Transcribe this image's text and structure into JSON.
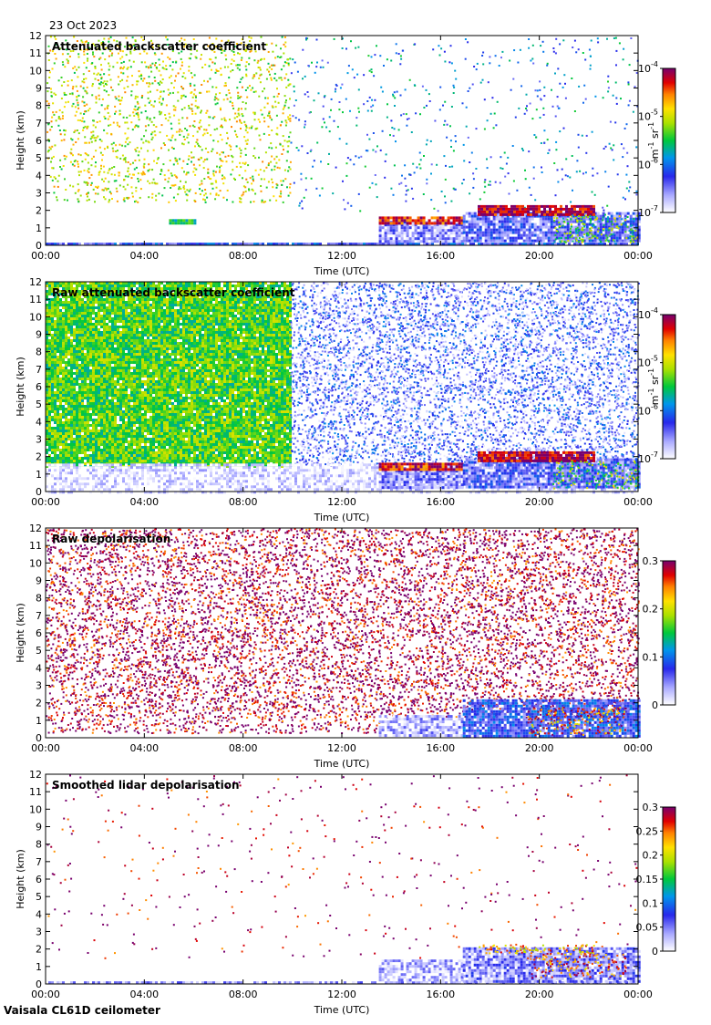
{
  "date_label": "23 Oct 2023",
  "footer": "Vaisala CL61D ceilometer",
  "chart_data": [
    {
      "type": "heatmap",
      "title": "Attenuated backscatter coefficient",
      "xlabel": "Time (UTC)",
      "ylabel": "Height (km)",
      "xticks": [
        "00:00",
        "04:00",
        "08:00",
        "12:00",
        "16:00",
        "20:00",
        "00:00"
      ],
      "xlim": [
        0,
        24
      ],
      "ylim": [
        0,
        12
      ],
      "yticks": [
        0,
        1,
        2,
        3,
        4,
        5,
        6,
        7,
        8,
        9,
        10,
        11,
        12
      ],
      "colorbar": {
        "scale": "log",
        "range": [
          1e-07,
          0.0001
        ],
        "ticks": [
          {
            "base": "10",
            "exp": "-4",
            "v": -4
          },
          {
            "base": "10",
            "exp": "-5",
            "v": -5
          },
          {
            "base": "10",
            "exp": "-6",
            "v": -6
          },
          {
            "base": "10",
            "exp": "-7",
            "v": -7
          }
        ],
        "unit": {
          "a": "m",
          "a_exp": "-1",
          "b": "sr",
          "b_exp": "-1"
        }
      },
      "features": [
        {
          "name": "noise-high",
          "t": [
            0,
            9.9
          ],
          "h": [
            2.5,
            12
          ],
          "level": 0.65,
          "density": 0.28
        },
        {
          "name": "noise-late",
          "t": [
            9.9,
            24
          ],
          "h": [
            2,
            12
          ],
          "level": 0.35,
          "density": 0.07
        },
        {
          "name": "surface-layer",
          "t": [
            0,
            24
          ],
          "h": [
            0,
            0.15
          ],
          "level": 0.25,
          "density": 0.9
        },
        {
          "name": "low-cloud-1",
          "t": [
            13.5,
            16.9
          ],
          "h": [
            0.2,
            1.4
          ],
          "level": 0.15,
          "density": 0.85
        },
        {
          "name": "cloud-top-1",
          "t": [
            13.5,
            16.9
          ],
          "h": [
            1.3,
            1.65
          ],
          "level": 0.9,
          "density": 0.9
        },
        {
          "name": "low-cloud-2",
          "t": [
            16.9,
            24
          ],
          "h": [
            0.2,
            1.9
          ],
          "level": 0.2,
          "density": 0.85
        },
        {
          "name": "cloud-top-2",
          "t": [
            17.5,
            22.2
          ],
          "h": [
            1.8,
            2.3
          ],
          "level": 0.95,
          "density": 0.95
        },
        {
          "name": "cloud-2-side",
          "t": [
            20.5,
            24
          ],
          "h": [
            0.2,
            1.8
          ],
          "level": 0.55,
          "density": 0.6
        },
        {
          "name": "aerosol-blob",
          "t": [
            5.0,
            6.0
          ],
          "h": [
            1.2,
            1.5
          ],
          "level": 0.5,
          "density": 0.9
        }
      ]
    },
    {
      "type": "heatmap",
      "title": "Raw attenuated backscatter coefficient",
      "xlabel": "Time (UTC)",
      "ylabel": "Height (km)",
      "xticks": [
        "00:00",
        "04:00",
        "08:00",
        "12:00",
        "16:00",
        "20:00",
        "00:00"
      ],
      "xlim": [
        0,
        24
      ],
      "ylim": [
        0,
        12
      ],
      "yticks": [
        0,
        1,
        2,
        3,
        4,
        5,
        6,
        7,
        8,
        9,
        10,
        11,
        12
      ],
      "colorbar": {
        "scale": "log",
        "range": [
          1e-07,
          0.0001
        ],
        "ticks": [
          {
            "base": "10",
            "exp": "-4",
            "v": -4
          },
          {
            "base": "10",
            "exp": "-5",
            "v": -5
          },
          {
            "base": "10",
            "exp": "-6",
            "v": -6
          },
          {
            "base": "10",
            "exp": "-7",
            "v": -7
          }
        ],
        "unit": {
          "a": "m",
          "a_exp": "-1",
          "b": "sr",
          "b_exp": "-1"
        }
      },
      "features": [
        {
          "name": "noise-day",
          "t": [
            0,
            9.9
          ],
          "h": [
            1.5,
            12
          ],
          "level": 0.55,
          "density": 0.95
        },
        {
          "name": "noise-night",
          "t": [
            9.9,
            24
          ],
          "h": [
            1.5,
            12
          ],
          "level": 0.2,
          "density": 0.75
        },
        {
          "name": "low-grey",
          "t": [
            0,
            24
          ],
          "h": [
            0,
            1.6
          ],
          "level": 0.02,
          "density": 0.9
        },
        {
          "name": "low-cloud-1",
          "t": [
            13.5,
            16.9
          ],
          "h": [
            0.2,
            1.4
          ],
          "level": 0.15,
          "density": 0.85
        },
        {
          "name": "cloud-top-1",
          "t": [
            13.5,
            16.9
          ],
          "h": [
            1.3,
            1.65
          ],
          "level": 0.9,
          "density": 0.9
        },
        {
          "name": "low-cloud-2",
          "t": [
            16.9,
            24
          ],
          "h": [
            0.2,
            1.9
          ],
          "level": 0.2,
          "density": 0.85
        },
        {
          "name": "cloud-top-2",
          "t": [
            17.5,
            22.2
          ],
          "h": [
            1.8,
            2.3
          ],
          "level": 0.95,
          "density": 0.95
        },
        {
          "name": "cloud-2-side",
          "t": [
            20.5,
            24
          ],
          "h": [
            0.2,
            1.8
          ],
          "level": 0.55,
          "density": 0.6
        }
      ]
    },
    {
      "type": "heatmap",
      "title": "Raw depolarisation",
      "xlabel": "Time (UTC)",
      "ylabel": "Height (km)",
      "xticks": [
        "00:00",
        "04:00",
        "08:00",
        "12:00",
        "16:00",
        "20:00",
        "00:00"
      ],
      "xlim": [
        0,
        24
      ],
      "ylim": [
        0,
        12
      ],
      "yticks": [
        0,
        1,
        2,
        3,
        4,
        5,
        6,
        7,
        8,
        9,
        10,
        11,
        12
      ],
      "colorbar": {
        "scale": "linear",
        "range": [
          0,
          0.3
        ],
        "ticks": [
          {
            "label": "0.3",
            "v": 0.3
          },
          {
            "label": "0.2",
            "v": 0.2
          },
          {
            "label": "0.1",
            "v": 0.1
          },
          {
            "label": "0",
            "v": 0
          }
        ]
      },
      "features": [
        {
          "name": "noise-full",
          "t": [
            0,
            24
          ],
          "h": [
            1.2,
            12
          ],
          "level": 0.97,
          "density": 0.58
        },
        {
          "name": "noise-low",
          "t": [
            0,
            13.5
          ],
          "h": [
            0.3,
            1.2
          ],
          "level": 0.97,
          "density": 0.45
        },
        {
          "name": "low-cloud-1",
          "t": [
            13.5,
            16.9
          ],
          "h": [
            0.1,
            1.3
          ],
          "level": 0.1,
          "density": 0.85
        },
        {
          "name": "low-cloud-2",
          "t": [
            16.9,
            24
          ],
          "h": [
            0.1,
            2.2
          ],
          "level": 0.25,
          "density": 0.85
        },
        {
          "name": "high-depol",
          "t": [
            19.5,
            23.5
          ],
          "h": [
            0.2,
            1.8
          ],
          "level": 0.85,
          "density": 0.55
        }
      ]
    },
    {
      "type": "heatmap",
      "title": "Smoothed lidar depolarisation",
      "xlabel": "Time (UTC)",
      "ylabel": "Height (km)",
      "xticks": [
        "00:00",
        "04:00",
        "08:00",
        "12:00",
        "16:00",
        "20:00",
        "00:00"
      ],
      "xlim": [
        0,
        24
      ],
      "ylim": [
        0,
        12
      ],
      "yticks": [
        0,
        1,
        2,
        3,
        4,
        5,
        6,
        7,
        8,
        9,
        10,
        11,
        12
      ],
      "colorbar": {
        "scale": "linear",
        "range": [
          0,
          0.3
        ],
        "ticks": [
          {
            "label": "0.3",
            "v": 0.3
          },
          {
            "label": "0.25",
            "v": 0.25
          },
          {
            "label": "0.2",
            "v": 0.2
          },
          {
            "label": "0.15",
            "v": 0.15
          },
          {
            "label": "0.1",
            "v": 0.1
          },
          {
            "label": "0.05",
            "v": 0.05
          },
          {
            "label": "0",
            "v": 0
          }
        ]
      },
      "features": [
        {
          "name": "sparse-noise",
          "t": [
            0,
            24
          ],
          "h": [
            1.5,
            12
          ],
          "level": 0.97,
          "density": 0.03
        },
        {
          "name": "surface-layer",
          "t": [
            0,
            24
          ],
          "h": [
            0,
            0.15
          ],
          "level": 0.1,
          "density": 0.9
        },
        {
          "name": "low-cloud-1",
          "t": [
            13.5,
            16.9
          ],
          "h": [
            0.2,
            1.4
          ],
          "level": 0.08,
          "density": 0.85
        },
        {
          "name": "low-cloud-2",
          "t": [
            16.9,
            24
          ],
          "h": [
            0.2,
            2.1
          ],
          "level": 0.15,
          "density": 0.85
        },
        {
          "name": "cloud-top-2",
          "t": [
            17.5,
            22.2
          ],
          "h": [
            1.8,
            2.3
          ],
          "level": 0.75,
          "density": 0.7
        },
        {
          "name": "high-depol",
          "t": [
            19.5,
            23.5
          ],
          "h": [
            0.4,
            1.8
          ],
          "level": 0.85,
          "density": 0.45
        }
      ]
    }
  ]
}
